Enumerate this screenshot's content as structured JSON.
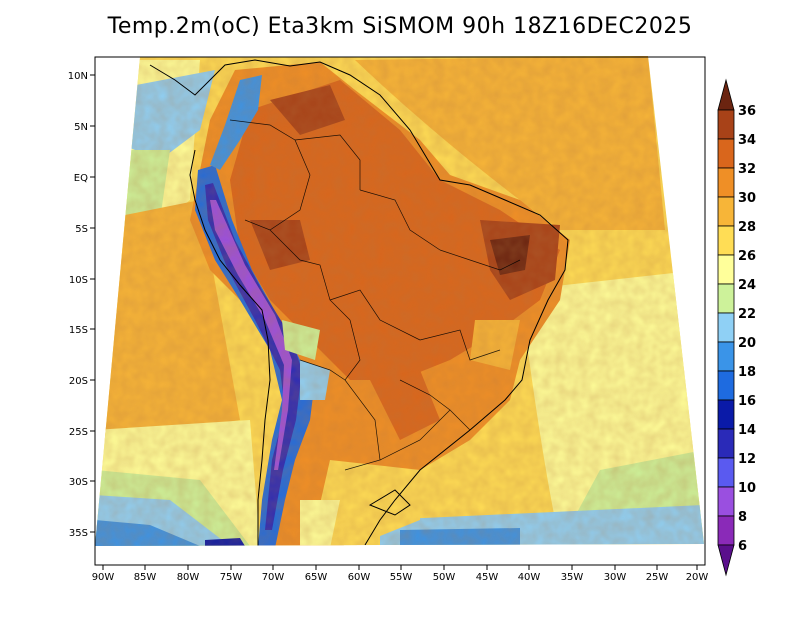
{
  "title": "Temp.2m(oC) Eta3km SiSMOM 90h 18Z16DEC2025",
  "map": {
    "region": "South America",
    "variable": "2 m temperature",
    "latitude_labels": [
      "10N",
      "5N",
      "EQ",
      "5S",
      "10S",
      "15S",
      "20S",
      "25S",
      "30S",
      "35S"
    ],
    "longitude_labels": [
      "90W",
      "85W",
      "80W",
      "75W",
      "70W",
      "65W",
      "60W",
      "55W",
      "50W",
      "45W",
      "40W",
      "35W",
      "30W",
      "25W",
      "20W"
    ]
  },
  "colorbar": {
    "levels": [
      "6",
      "8",
      "10",
      "12",
      "14",
      "16",
      "18",
      "20",
      "22",
      "24",
      "26",
      "28",
      "30",
      "32",
      "34",
      "36"
    ],
    "colors": [
      "#5a0f8c",
      "#8a2ab8",
      "#9a4fe0",
      "#5a5af0",
      "#2a2ab8",
      "#0a1aa8",
      "#1e6be0",
      "#3a94e8",
      "#8fd0f5",
      "#cdf29a",
      "#ffff9a",
      "#ffdd55",
      "#f7b538",
      "#ef8f26",
      "#d9661c",
      "#a84218",
      "#6b2410"
    ]
  }
}
